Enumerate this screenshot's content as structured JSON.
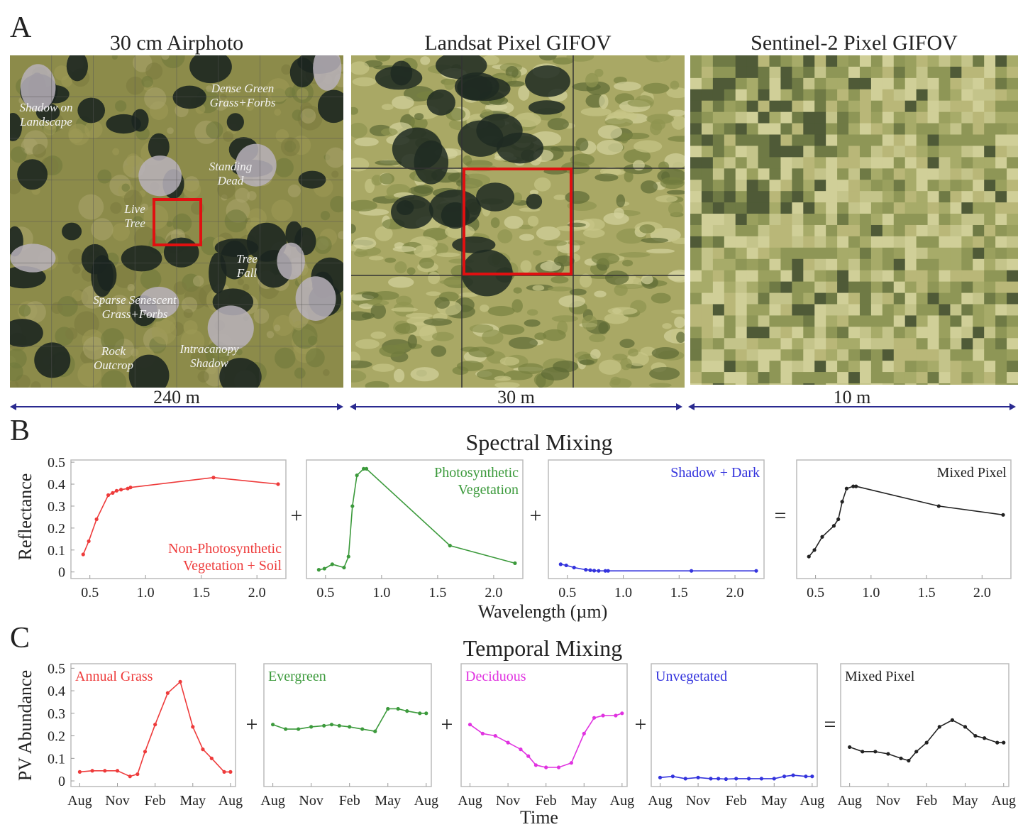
{
  "panel_a": {
    "label": "A",
    "images": [
      {
        "title": "30 cm Airphoto",
        "scale": "240 m"
      },
      {
        "title": "Landsat Pixel GIFOV",
        "scale": "30 m"
      },
      {
        "title": "Sentinel-2 Pixel GIFOV",
        "scale": "10 m"
      }
    ],
    "annotations": [
      "Dense Green\nGrass+Forbs",
      "Shadow on\nLandscape",
      "Standing\nDead",
      "Live\nTree",
      "Tree\nFall",
      "Sparse Senescent\nGrass+Forbs",
      "Rock\nOutcrop",
      "Intracanopy\nShadow"
    ]
  },
  "panel_b": {
    "label": "B",
    "title": "Spectral Mixing",
    "y_label": "Reflectance",
    "x_label": "Wavelength (µm)",
    "operators": [
      "+",
      "+",
      "="
    ]
  },
  "panel_c": {
    "label": "C",
    "title": "Temporal Mixing",
    "y_label": "PV Abundance",
    "x_label": "Time",
    "operators": [
      "+",
      "+",
      "+",
      "="
    ]
  },
  "chart_data": [
    {
      "type": "line",
      "panel": "B",
      "legend": "lower right",
      "x": [
        0.44,
        0.49,
        0.56,
        0.665,
        0.705,
        0.74,
        0.78,
        0.84,
        0.865,
        1.61,
        2.19
      ],
      "xlim": [
        0.33,
        2.26
      ],
      "ylim": [
        -0.03,
        0.51
      ],
      "xticks": [
        0.5,
        {
          "value": 1.0,
          "label": "1.0"
        },
        1.5,
        {
          "value": 2.0,
          "label": "2.0"
        }
      ],
      "yticks": [
        0,
        0.1,
        0.2,
        0.3,
        0.4,
        0.5
      ],
      "series": [
        {
          "name": "Non-Photosynthetic\nVegetation + Soil",
          "color": "#ee3b3b",
          "values": [
            0.08,
            0.14,
            0.24,
            0.35,
            0.36,
            0.37,
            0.375,
            0.38,
            0.385,
            0.43,
            0.4
          ]
        }
      ]
    },
    {
      "type": "line",
      "panel": "B",
      "legend": "upper right",
      "x": [
        0.44,
        0.49,
        0.56,
        0.665,
        0.705,
        0.74,
        0.78,
        0.84,
        0.865,
        1.61,
        2.19
      ],
      "xlim": [
        0.33,
        2.26
      ],
      "ylim": [
        -0.03,
        0.51
      ],
      "xticks": [
        0.5,
        {
          "value": 1.0,
          "label": "1.0"
        },
        1.5,
        {
          "value": 2.0,
          "label": "2.0"
        }
      ],
      "series": [
        {
          "name": "Photosynthetic\nVegetation",
          "color": "#3c9a3c",
          "values": [
            0.01,
            0.015,
            0.035,
            0.02,
            0.07,
            0.3,
            0.44,
            0.47,
            0.47,
            0.12,
            0.04
          ]
        }
      ]
    },
    {
      "type": "line",
      "panel": "B",
      "legend": "upper right",
      "x": [
        0.44,
        0.49,
        0.56,
        0.665,
        0.705,
        0.74,
        0.78,
        0.84,
        0.865,
        1.61,
        2.19
      ],
      "xlim": [
        0.33,
        2.26
      ],
      "ylim": [
        -0.03,
        0.51
      ],
      "xticks": [
        0.5,
        {
          "value": 1.0,
          "label": "1.0"
        },
        1.5,
        {
          "value": 2.0,
          "label": "2.0"
        }
      ],
      "series": [
        {
          "name": "Shadow + Dark",
          "color": "#3333dd",
          "values": [
            0.035,
            0.03,
            0.02,
            0.01,
            0.008,
            0.006,
            0.005,
            0.005,
            0.005,
            0.005,
            0.005
          ]
        }
      ]
    },
    {
      "type": "line",
      "panel": "B",
      "legend": "upper right",
      "x": [
        0.44,
        0.49,
        0.56,
        0.665,
        0.705,
        0.74,
        0.78,
        0.84,
        0.865,
        1.61,
        2.19
      ],
      "xlim": [
        0.33,
        2.26
      ],
      "ylim": [
        -0.03,
        0.51
      ],
      "xticks": [
        0.5,
        {
          "value": 1.0,
          "label": "1.0"
        },
        1.5,
        {
          "value": 2.0,
          "label": "2.0"
        }
      ],
      "series": [
        {
          "name": "Mixed Pixel",
          "color": "#222222",
          "values": [
            0.07,
            0.1,
            0.16,
            0.21,
            0.24,
            0.32,
            0.38,
            0.39,
            0.39,
            0.3,
            0.26
          ]
        }
      ]
    },
    {
      "type": "line",
      "panel": "C",
      "legend": "upper left",
      "x": [
        0,
        1,
        2,
        3,
        4,
        4.6,
        5.2,
        6,
        7,
        8,
        9,
        9.8,
        10.5,
        11.5,
        12
      ],
      "xlim": [
        -0.7,
        12.4
      ],
      "ylim": [
        -0.025,
        0.52
      ],
      "xticks": [
        {
          "value": 0,
          "label": "Aug"
        },
        {
          "value": 3,
          "label": "Nov"
        },
        {
          "value": 6,
          "label": "Feb"
        },
        {
          "value": 9,
          "label": "May"
        },
        {
          "value": 12,
          "label": "Aug"
        }
      ],
      "yticks": [
        0,
        0.1,
        0.2,
        0.3,
        0.4,
        0.5
      ],
      "series": [
        {
          "name": "Annual Grass",
          "color": "#ee3b3b",
          "values": [
            0.04,
            0.045,
            0.045,
            0.045,
            0.02,
            0.03,
            0.13,
            0.25,
            0.39,
            0.44,
            0.24,
            0.14,
            0.1,
            0.04,
            0.04
          ]
        }
      ]
    },
    {
      "type": "line",
      "panel": "C",
      "legend": "upper left",
      "x": [
        0,
        1,
        2,
        3,
        4,
        4.6,
        5.2,
        6,
        7,
        8,
        9,
        9.8,
        10.5,
        11.5,
        12
      ],
      "xlim": [
        -0.7,
        12.4
      ],
      "ylim": [
        -0.025,
        0.52
      ],
      "xticks": [
        {
          "value": 0,
          "label": "Aug"
        },
        {
          "value": 3,
          "label": "Nov"
        },
        {
          "value": 6,
          "label": "Feb"
        },
        {
          "value": 9,
          "label": "May"
        },
        {
          "value": 12,
          "label": "Aug"
        }
      ],
      "series": [
        {
          "name": "Evergreen",
          "color": "#3c9a3c",
          "values": [
            0.25,
            0.23,
            0.23,
            0.24,
            0.245,
            0.25,
            0.245,
            0.24,
            0.23,
            0.22,
            0.32,
            0.32,
            0.31,
            0.3,
            0.3
          ]
        }
      ]
    },
    {
      "type": "line",
      "panel": "C",
      "legend": "upper left",
      "x": [
        0,
        1,
        2,
        3,
        4,
        4.6,
        5.2,
        6,
        7,
        8,
        9,
        9.8,
        10.5,
        11.5,
        12
      ],
      "xlim": [
        -0.7,
        12.4
      ],
      "ylim": [
        -0.025,
        0.52
      ],
      "xticks": [
        {
          "value": 0,
          "label": "Aug"
        },
        {
          "value": 3,
          "label": "Nov"
        },
        {
          "value": 6,
          "label": "Feb"
        },
        {
          "value": 9,
          "label": "May"
        },
        {
          "value": 12,
          "label": "Aug"
        }
      ],
      "series": [
        {
          "name": "Deciduous",
          "color": "#e033e0",
          "values": [
            0.25,
            0.21,
            0.2,
            0.17,
            0.14,
            0.11,
            0.07,
            0.06,
            0.06,
            0.08,
            0.21,
            0.28,
            0.29,
            0.29,
            0.3
          ]
        }
      ]
    },
    {
      "type": "line",
      "panel": "C",
      "legend": "upper left",
      "x": [
        0,
        1,
        2,
        3,
        4,
        4.6,
        5.2,
        6,
        7,
        8,
        9,
        9.8,
        10.5,
        11.5,
        12
      ],
      "xlim": [
        -0.7,
        12.4
      ],
      "ylim": [
        -0.025,
        0.52
      ],
      "xticks": [
        {
          "value": 0,
          "label": "Aug"
        },
        {
          "value": 3,
          "label": "Nov"
        },
        {
          "value": 6,
          "label": "Feb"
        },
        {
          "value": 9,
          "label": "May"
        },
        {
          "value": 12,
          "label": "Aug"
        }
      ],
      "series": [
        {
          "name": "Unvegetated",
          "color": "#3333dd",
          "values": [
            0.015,
            0.02,
            0.01,
            0.015,
            0.01,
            0.01,
            0.008,
            0.01,
            0.01,
            0.01,
            0.01,
            0.02,
            0.025,
            0.02,
            0.02
          ]
        }
      ]
    },
    {
      "type": "line",
      "panel": "C",
      "legend": "upper left",
      "x": [
        0,
        1,
        2,
        3,
        4,
        4.6,
        5.2,
        6,
        7,
        8,
        9,
        9.8,
        10.5,
        11.5,
        12
      ],
      "xlim": [
        -0.7,
        12.4
      ],
      "ylim": [
        -0.025,
        0.52
      ],
      "xticks": [
        {
          "value": 0,
          "label": "Aug"
        },
        {
          "value": 3,
          "label": "Nov"
        },
        {
          "value": 6,
          "label": "Feb"
        },
        {
          "value": 9,
          "label": "May"
        },
        {
          "value": 12,
          "label": "Aug"
        }
      ],
      "series": [
        {
          "name": "Mixed Pixel",
          "color": "#222222",
          "values": [
            0.15,
            0.13,
            0.13,
            0.12,
            0.1,
            0.09,
            0.13,
            0.17,
            0.24,
            0.27,
            0.24,
            0.2,
            0.19,
            0.17,
            0.17
          ]
        }
      ]
    }
  ]
}
